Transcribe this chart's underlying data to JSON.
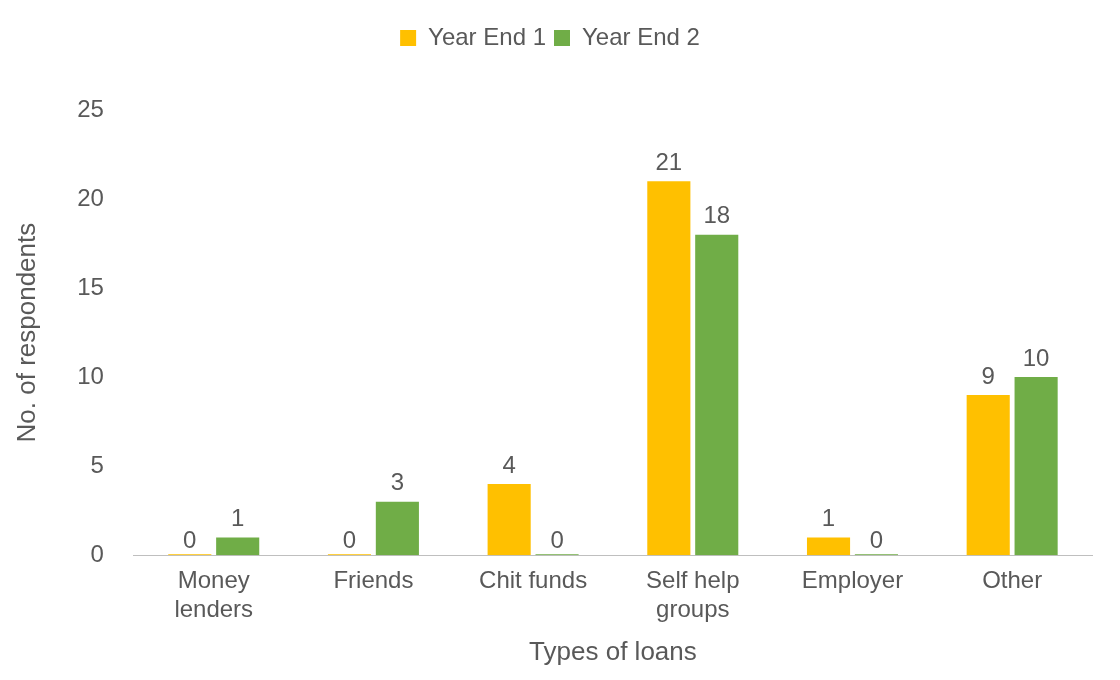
{
  "chart_data": {
    "type": "bar",
    "xlabel": "Types of loans",
    "ylabel": "No. of respondents",
    "categories": [
      "Money lenders",
      "Friends",
      "Chit funds",
      "Self help groups",
      "Employer",
      "Other"
    ],
    "series": [
      {
        "name": "Year End 1",
        "color": "#ffc000",
        "values": [
          0,
          0,
          4,
          21,
          1,
          9
        ]
      },
      {
        "name": "Year End 2",
        "color": "#70ad47",
        "values": [
          1,
          3,
          0,
          18,
          0,
          10
        ]
      }
    ],
    "ylim": [
      0,
      25
    ],
    "yticks": [
      0,
      5,
      10,
      15,
      20,
      25
    ],
    "grid": false,
    "legend": "top",
    "data_labels": true
  }
}
